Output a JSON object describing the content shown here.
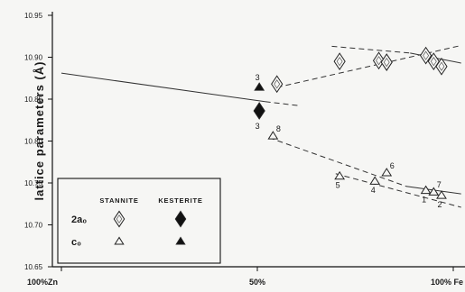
{
  "chart_data": {
    "type": "scatter",
    "ylabel": "lattice parameters (Å)",
    "xtick_labels": [
      "100%Zn",
      "50%",
      "100% Fe"
    ],
    "xlim": [
      0,
      100
    ],
    "ylim": [
      10.65,
      10.95
    ],
    "yticks": [
      "10.65",
      "10.70",
      "10.75",
      "10.80",
      "10.85",
      "10.90",
      "10.95"
    ],
    "series": [
      {
        "name": "STANNITE 2a₀",
        "group": "STANNITE",
        "symbol": "open-diamond",
        "points": [
          {
            "x": 55,
            "y": 10.868,
            "label": ""
          },
          {
            "x": 71,
            "y": 10.895,
            "label": ""
          },
          {
            "x": 81,
            "y": 10.896,
            "label": ""
          },
          {
            "x": 83,
            "y": 10.894,
            "label": ""
          },
          {
            "x": 93,
            "y": 10.902,
            "label": ""
          },
          {
            "x": 95,
            "y": 10.895,
            "label": ""
          },
          {
            "x": 97,
            "y": 10.889,
            "label": ""
          }
        ]
      },
      {
        "name": "STANNITE c₀",
        "group": "STANNITE",
        "symbol": "open-triangle",
        "points": [
          {
            "x": 54,
            "y": 10.806,
            "label": "8"
          },
          {
            "x": 71,
            "y": 10.758,
            "label": "5"
          },
          {
            "x": 80,
            "y": 10.752,
            "label": "4"
          },
          {
            "x": 83,
            "y": 10.762,
            "label": "6"
          },
          {
            "x": 93,
            "y": 10.741,
            "label": "1"
          },
          {
            "x": 95,
            "y": 10.739,
            "label": "7"
          },
          {
            "x": 97,
            "y": 10.735,
            "label": "2"
          }
        ]
      },
      {
        "name": "KESTERITE 2a₀",
        "group": "KESTERITE",
        "symbol": "filled-diamond",
        "points": [
          {
            "x": 50.5,
            "y": 10.836,
            "label": "3"
          }
        ]
      },
      {
        "name": "KESTERITE c₀",
        "group": "KESTERITE",
        "symbol": "filled-triangle",
        "points": [
          {
            "x": 50.5,
            "y": 10.864,
            "label": "3"
          }
        ]
      }
    ],
    "trend_lines": [
      {
        "style": "solid",
        "from": [
          0,
          10.881
        ],
        "to": [
          52,
          10.847
        ]
      },
      {
        "style": "dashed",
        "from": [
          52,
          10.847
        ],
        "to": [
          61,
          10.842
        ]
      },
      {
        "style": "dashed",
        "from": [
          55,
          10.864
        ],
        "to": [
          102,
          10.914
        ]
      },
      {
        "style": "dashed",
        "from": [
          69,
          10.913
        ],
        "to": [
          89,
          10.905
        ]
      },
      {
        "style": "solid",
        "from": [
          89,
          10.905
        ],
        "to": [
          102,
          10.893
        ]
      },
      {
        "style": "dashed",
        "from": [
          53,
          10.804
        ],
        "to": [
          88,
          10.746
        ]
      },
      {
        "style": "solid",
        "from": [
          88,
          10.746
        ],
        "to": [
          102,
          10.737
        ]
      },
      {
        "style": "dashed",
        "from": [
          70,
          10.761
        ],
        "to": [
          102,
          10.721
        ]
      }
    ],
    "grid": false,
    "legend": {
      "placement": "bottom-left",
      "headers": [
        "STANNITE",
        "KESTERITE"
      ],
      "rows": [
        "2a₀",
        "c₀"
      ]
    }
  }
}
